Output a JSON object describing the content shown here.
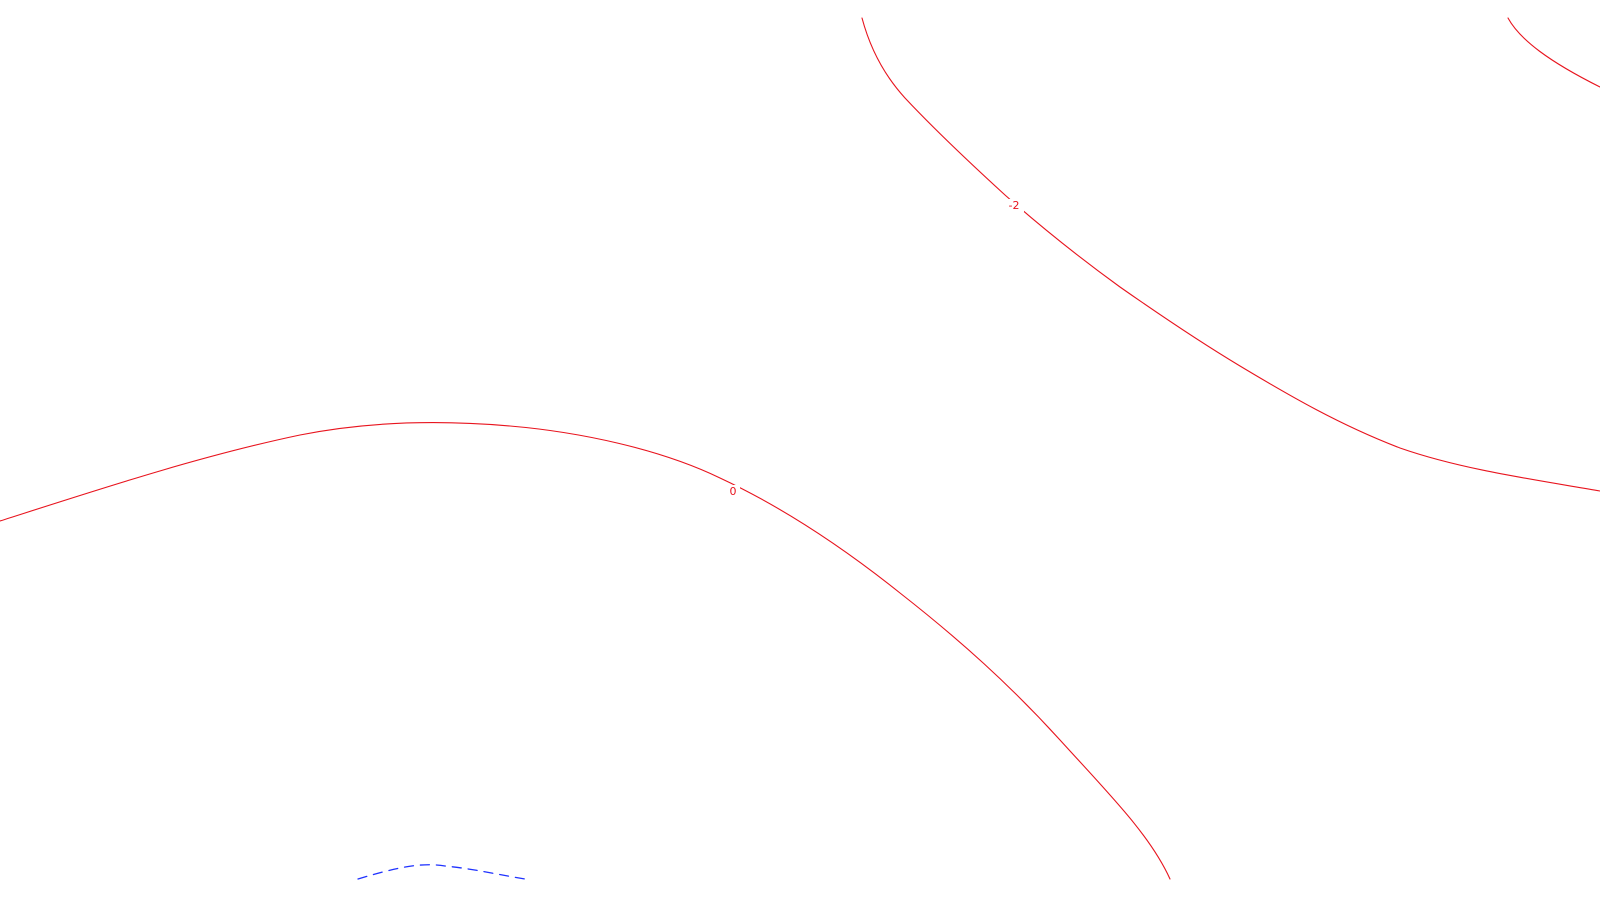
{
  "map": {
    "background": "#ffffff",
    "contours": [
      {
        "id": "neg2-main",
        "level_label": "-2",
        "color": "#e8141e",
        "style": "solid"
      },
      {
        "id": "neg2-corner",
        "level_label": "",
        "color": "#e8141e",
        "style": "solid"
      },
      {
        "id": "zero",
        "level_label": "0",
        "color": "#e8141e",
        "style": "solid"
      },
      {
        "id": "positive-dashed",
        "level_label": "",
        "color": "#1f32ff",
        "style": "dashed"
      }
    ]
  }
}
